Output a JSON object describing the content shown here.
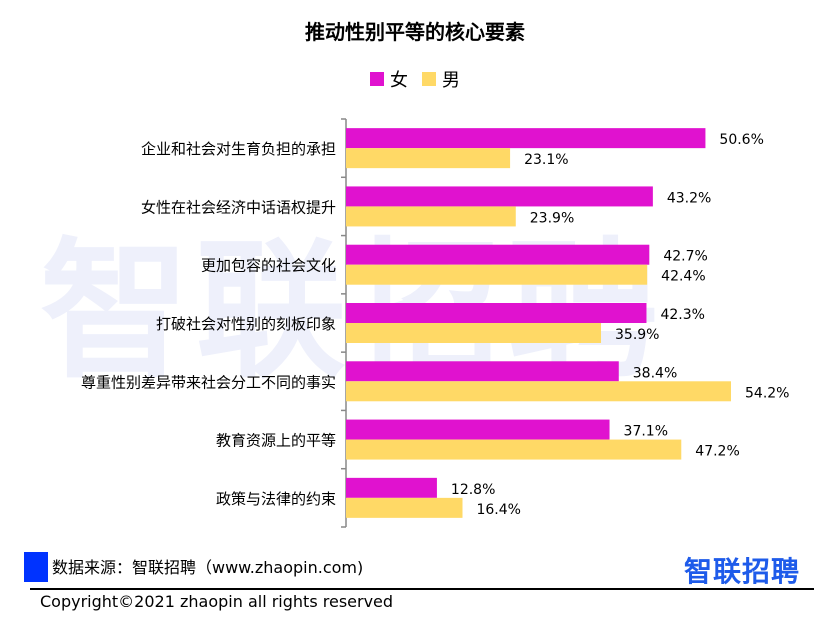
{
  "brand": {
    "watermark": "智联招聘",
    "logo_text": "智联招聘"
  },
  "source": "数据来源：智联招聘（www.zhaopin.com)",
  "copyright": "Copyright©2021 zhaopin all rights reserved",
  "colors": {
    "female": "#e012cf",
    "male": "#ffd966",
    "source_square": "#0033ff",
    "brand": "#1e5bea"
  },
  "chart_data": {
    "type": "bar",
    "orientation": "horizontal",
    "title": "推动性别平等的核心要素",
    "legend_position": "top",
    "categories": [
      "企业和社会对生育负担的承担",
      "女性在社会经济中话语权提升",
      "更加包容的社会文化",
      "打破社会对性别的刻板印象",
      "尊重性别差异带来社会分工不同的事实",
      "教育资源上的平等",
      "政策与法律的约束"
    ],
    "series": [
      {
        "name": "女",
        "values": [
          50.6,
          43.2,
          42.7,
          42.3,
          38.4,
          37.1,
          12.8
        ],
        "labels": [
          "50.6%",
          "43.2%",
          "42.7%",
          "42.3%",
          "38.4%",
          "37.1%",
          "12.8%"
        ]
      },
      {
        "name": "男",
        "values": [
          23.1,
          23.9,
          42.4,
          35.9,
          54.2,
          47.2,
          16.4
        ],
        "labels": [
          "23.1%",
          "23.9%",
          "42.4%",
          "35.9%",
          "54.2%",
          "47.2%",
          "16.4%"
        ]
      }
    ],
    "xlim": [
      0,
      58
    ],
    "grid": false
  }
}
